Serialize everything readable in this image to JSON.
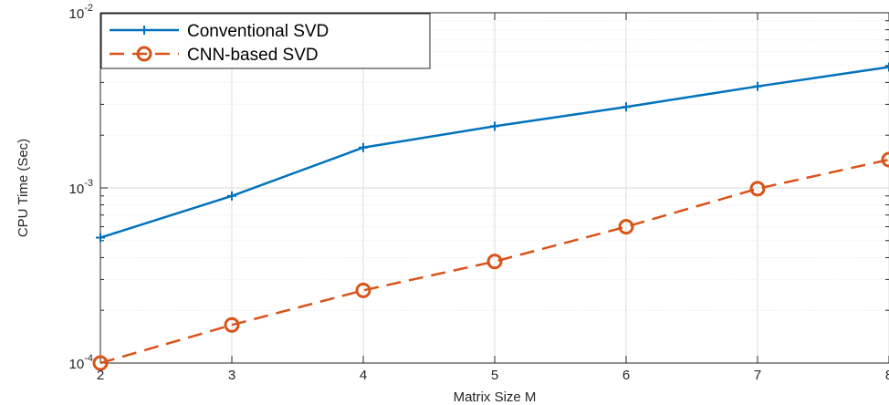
{
  "chart_data": {
    "type": "line",
    "x_scale": "linear",
    "y_scale": "log",
    "xlim": [
      2,
      8
    ],
    "ylim": [
      0.0001,
      0.01
    ],
    "xlabel": "Matrix Size M",
    "ylabel": "CPU Time (Sec)",
    "x_ticks": [
      "2",
      "3",
      "4",
      "5",
      "6",
      "7",
      "8"
    ],
    "y_ticks": [
      {
        "value": 0.0001,
        "base": "10",
        "exp": "-4"
      },
      {
        "value": 0.001,
        "base": "10",
        "exp": "-3"
      },
      {
        "value": 0.01,
        "base": "10",
        "exp": "-2"
      }
    ],
    "grid": true,
    "legend_position": "top-left",
    "x": [
      2,
      3,
      4,
      5,
      6,
      7,
      8
    ],
    "series": [
      {
        "name": "Conventional SVD",
        "color": "#0072BD",
        "line_style": "solid",
        "marker": "plus",
        "values": [
          0.00052,
          0.0009,
          0.0017,
          0.00225,
          0.0029,
          0.0038,
          0.0049
        ]
      },
      {
        "name": "CNN-based SVD",
        "color": "#D95319",
        "line_style": "dashed",
        "marker": "circle",
        "values": [
          0.0001,
          0.000165,
          0.00026,
          0.00038,
          0.0006,
          0.00099,
          0.00145
        ]
      }
    ]
  }
}
